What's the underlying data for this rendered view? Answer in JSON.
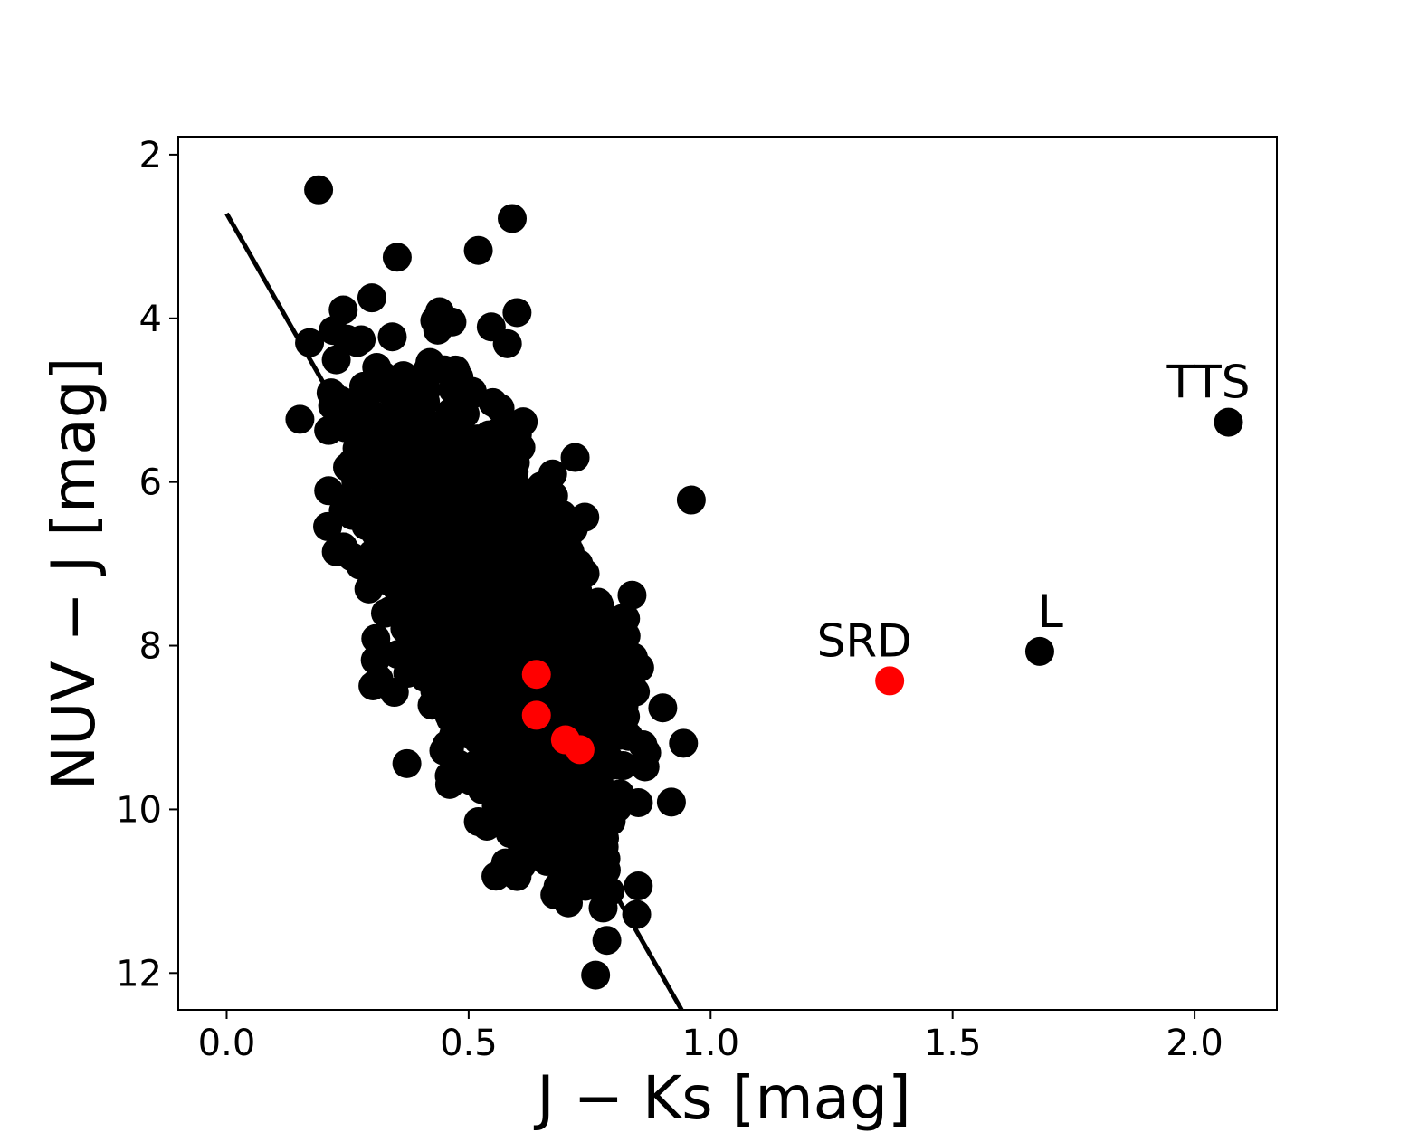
{
  "chart_data": {
    "type": "scatter",
    "title": "",
    "xlabel": "J − Ks [mag]",
    "ylabel": "NUV − J [mag]",
    "xlim": [
      -0.1,
      2.17
    ],
    "ylim": [
      12.45,
      1.78
    ],
    "y_inverted": true,
    "grid": false,
    "legend": "none",
    "xticks": [
      0.0,
      0.5,
      1.0,
      1.5,
      2.0
    ],
    "xtick_labels": [
      "0.0",
      "0.5",
      "1.0",
      "1.5",
      "2.0"
    ],
    "yticks": [
      2,
      4,
      6,
      8,
      10,
      12
    ],
    "ytick_labels": [
      "2",
      "4",
      "6",
      "8",
      "10",
      "12"
    ],
    "colors": {
      "main": "#000000",
      "highlight": "#ff0000"
    },
    "line": {
      "x": [
        0.0,
        0.94
      ],
      "y": [
        2.72,
        12.45
      ]
    },
    "series": [
      {
        "color": "#000000",
        "x": [
          0.19,
          0.3,
          0.44,
          0.43,
          0.52,
          0.59,
          0.6,
          0.58,
          0.72,
          0.96,
          2.07,
          1.68,
          0.86,
          0.78,
          0.71,
          0.78,
          0.61,
          0.6,
          0.42,
          0.45,
          0.48,
          0.55,
          0.59,
          0.31,
          0.31,
          0.35,
          0.4,
          0.37,
          0.33,
          0.65,
          0.66,
          0.74,
          0.77,
          0.78,
          0.8,
          0.82,
          0.82,
          0.75,
          0.43,
          0.36,
          0.38,
          0.42,
          0.46,
          0.52
        ],
        "y": [
          2.43,
          3.75,
          3.92,
          4.03,
          3.17,
          2.78,
          3.93,
          4.31,
          5.7,
          6.22,
          5.27,
          8.07,
          9.21,
          10.46,
          10.58,
          7.79,
          10.68,
          10.82,
          4.54,
          4.63,
          4.72,
          5.03,
          5.33,
          4.6,
          5.2,
          5.08,
          4.97,
          4.77,
          4.87,
          6.05,
          6.28,
          6.43,
          7.5,
          7.75,
          8.5,
          8.83,
          9.0,
          9.87,
          8.55,
          6.91,
          7.29,
          7.89,
          9.59,
          10.15
        ]
      },
      {
        "color": "#ff0000",
        "x": [
          0.64,
          0.64,
          0.7,
          0.73,
          1.37
        ],
        "y": [
          8.35,
          8.85,
          9.15,
          9.27,
          8.43
        ]
      }
    ],
    "cloud": {
      "x_center": 0.55,
      "y_center": 7.6,
      "x_spread": 0.09,
      "y_spread": 1.25,
      "count": 2000,
      "slope": 0.12
    },
    "annotations": [
      {
        "text": "TTS",
        "x": 2.07,
        "y": 5.27
      },
      {
        "text": "L",
        "x": 1.68,
        "y": 8.07
      },
      {
        "text": "SRD",
        "x": 1.37,
        "y": 8.43
      }
    ]
  }
}
